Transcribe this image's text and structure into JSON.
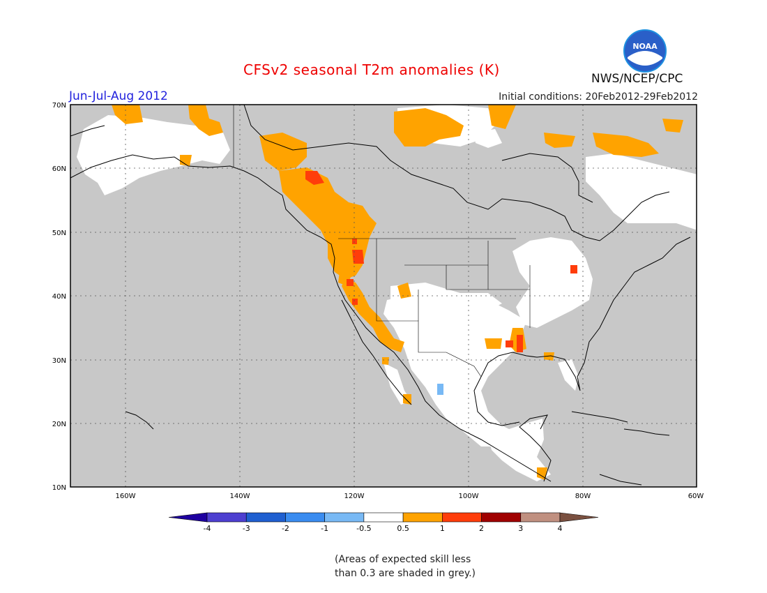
{
  "header": {
    "title": "CFSv2 seasonal T2m anomalies (K)",
    "period": "Jun-Jul-Aug 2012",
    "initial_conditions": "Initial conditions: 20Feb2012-29Feb2012",
    "agency": "NWS/NCEP/CPC",
    "logo_text": "NOAA"
  },
  "map": {
    "lat_labels": [
      "70N",
      "60N",
      "50N",
      "40N",
      "30N",
      "20N",
      "10N"
    ],
    "lon_labels": [
      "160W",
      "140W",
      "120W",
      "100W",
      "80W",
      "60W"
    ],
    "colors": {
      "land_background": "#c8c8c8",
      "no_skill_grey": "#c8c8c8",
      "neutral": "#ffffff",
      "warm_0_5_1": "#ffa300",
      "warm_1_2": "#ff3d0a",
      "warm_2_3": "#a00000",
      "cool_m1_m0_5": "#78b9f5"
    },
    "icon": "noaa-logo-icon"
  },
  "colorbar": {
    "labels": [
      "-4",
      "-3",
      "-2",
      "-1",
      "-0.5",
      "0.5",
      "1",
      "2",
      "3",
      "4"
    ],
    "colors": [
      "#1e00a0",
      "#4d3fd0",
      "#1f5fd0",
      "#3a8cf0",
      "#78b9f5",
      "#ffffff",
      "#ffa300",
      "#ff3d0a",
      "#a00000",
      "#c09080",
      "#7a5040"
    ]
  },
  "footnote": {
    "line1": "(Areas of expected skill less",
    "line2": "than 0.3 are shaded in grey.)"
  }
}
